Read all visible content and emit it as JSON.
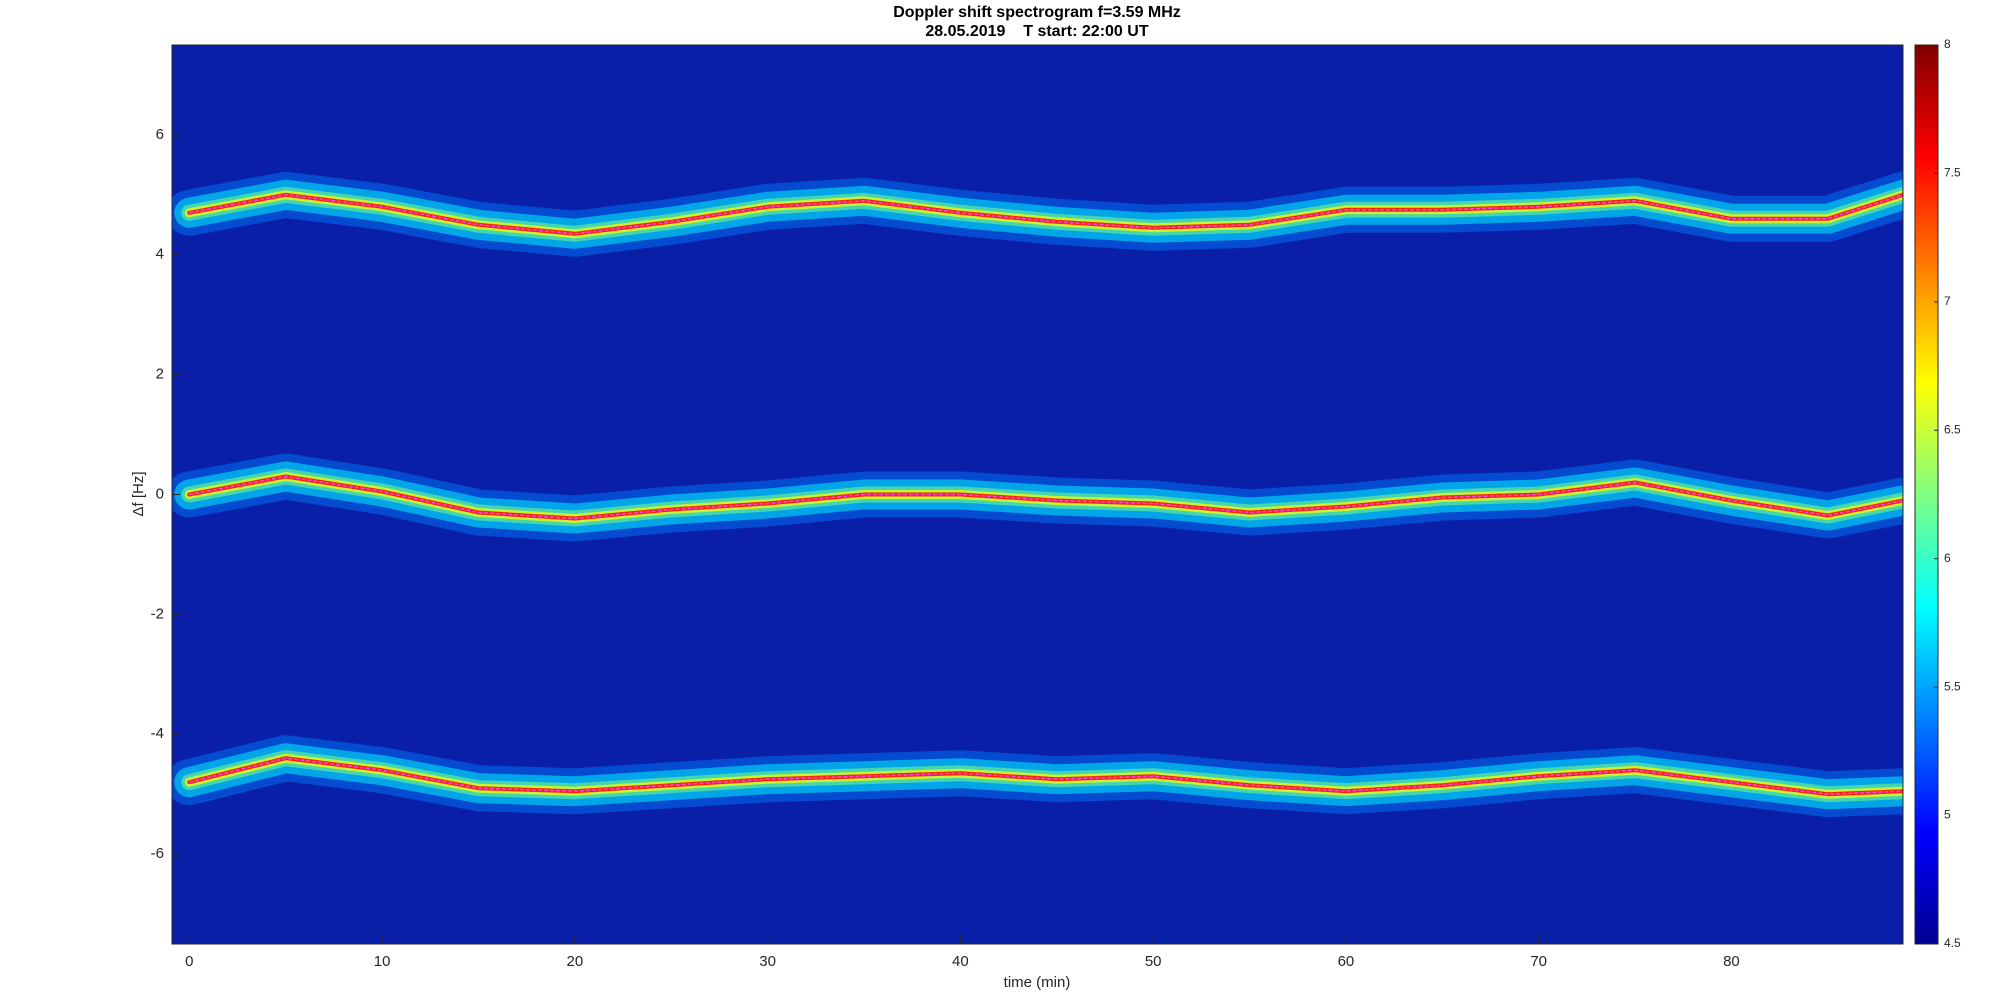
{
  "chart_data": {
    "type": "line",
    "title": "Doppler shift spectrogram f=3.59 MHz",
    "subtitle": "28.05.2019    T start: 22:00 UT",
    "x_label": "time (min)",
    "y_label": "Δf [Hz]",
    "x": [
      0,
      5,
      10,
      15,
      20,
      25,
      30,
      35,
      40,
      45,
      50,
      55,
      60,
      65,
      70,
      75,
      80,
      85,
      88.9
    ],
    "series": [
      {
        "color": "#ff40ff",
        "values": [
          4.7,
          5.0,
          4.8,
          4.5,
          4.35,
          4.55,
          4.8,
          4.9,
          4.7,
          4.55,
          4.45,
          4.5,
          4.75,
          4.75,
          4.8,
          4.9,
          4.6,
          4.6,
          5.0
        ]
      },
      {
        "color": "#ff40ff",
        "values": [
          0.0,
          0.3,
          0.05,
          -0.3,
          -0.4,
          -0.25,
          -0.15,
          0.0,
          0.0,
          -0.1,
          -0.15,
          -0.3,
          -0.2,
          -0.05,
          0.0,
          0.2,
          -0.1,
          -0.35,
          -0.1
        ]
      },
      {
        "color": "#ff40ff",
        "values": [
          -4.8,
          -4.4,
          -4.6,
          -4.9,
          -4.95,
          -4.85,
          -4.75,
          -4.7,
          -4.65,
          -4.75,
          -4.7,
          -4.85,
          -4.95,
          -4.85,
          -4.7,
          -4.6,
          -4.8,
          -5.0,
          -4.95
        ]
      }
    ],
    "xlim": [
      -0.9,
      88.9
    ],
    "xticks": [
      0,
      10,
      20,
      30,
      40,
      50,
      60,
      70,
      80
    ],
    "ylim": [
      -7.5,
      7.5
    ],
    "yticks": [
      -6,
      -4,
      -2,
      0,
      2,
      4,
      6
    ],
    "clim": [
      4.5,
      8
    ],
    "cticks": [
      4.5,
      5,
      5.5,
      6,
      6.5,
      7,
      7.5,
      8
    ],
    "colormap": [
      "#00008f",
      "#0000ff",
      "#0080ff",
      "#00ffff",
      "#80ff80",
      "#ffff00",
      "#ff8000",
      "#ff0000",
      "#800000"
    ],
    "background_color": "#0a1fa8"
  }
}
